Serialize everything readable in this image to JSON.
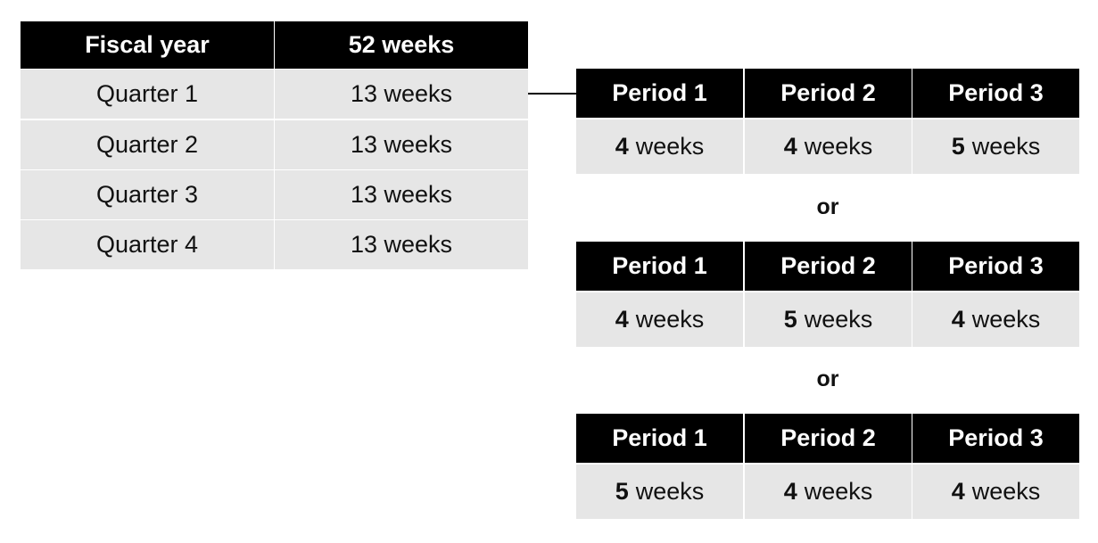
{
  "fiscal_table": {
    "header": [
      "Fiscal year",
      "52 weeks"
    ],
    "rows": [
      [
        "Quarter 1",
        "13 weeks"
      ],
      [
        "Quarter 2",
        "13 weeks"
      ],
      [
        "Quarter 3",
        "13 weeks"
      ],
      [
        "Quarter 4",
        "13 weeks"
      ]
    ]
  },
  "period_tables": [
    {
      "header": [
        "Period 1",
        "Period 2",
        "Period 3"
      ],
      "cells": [
        {
          "number": 4,
          "unit": "weeks"
        },
        {
          "number": 4,
          "unit": "weeks"
        },
        {
          "number": 5,
          "unit": "weeks"
        }
      ]
    },
    {
      "header": [
        "Period 1",
        "Period 2",
        "Period 3"
      ],
      "cells": [
        {
          "number": 4,
          "unit": "weeks"
        },
        {
          "number": 5,
          "unit": "weeks"
        },
        {
          "number": 4,
          "unit": "weeks"
        }
      ]
    },
    {
      "header": [
        "Period 1",
        "Period 2",
        "Period 3"
      ],
      "cells": [
        {
          "number": 5,
          "unit": "weeks"
        },
        {
          "number": 4,
          "unit": "weeks"
        },
        {
          "number": 4,
          "unit": "weeks"
        }
      ]
    }
  ],
  "separators": [
    "or",
    "or"
  ]
}
